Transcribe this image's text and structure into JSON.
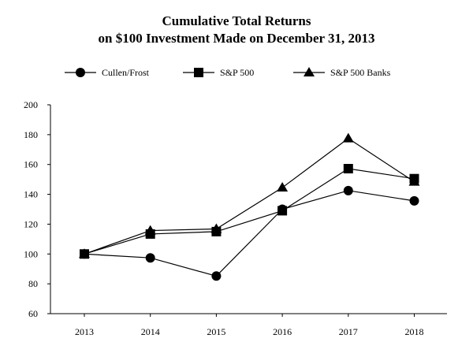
{
  "chart_data": {
    "type": "line",
    "title": "Cumulative Total Returns",
    "subtitle": "on $100 Investment Made on December 31, 2013",
    "xlabel": "",
    "ylabel": "",
    "categories": [
      "2013",
      "2014",
      "2015",
      "2016",
      "2017",
      "2018"
    ],
    "ylim": [
      60,
      200
    ],
    "yticks": [
      60,
      80,
      100,
      120,
      140,
      160,
      180,
      200
    ],
    "grid": false,
    "legend": "top",
    "series": [
      {
        "name": "Cullen/Frost",
        "marker": "circle",
        "values": [
          100,
          97.4,
          85.2,
          130.0,
          142.5,
          135.6
        ]
      },
      {
        "name": "S&P 500",
        "marker": "square",
        "values": [
          100,
          113.4,
          115.0,
          129.0,
          157.2,
          150.5
        ]
      },
      {
        "name": "S&P 500 Banks",
        "marker": "triangle",
        "values": [
          100,
          115.7,
          116.8,
          144.5,
          177.5,
          148.4
        ]
      }
    ]
  }
}
